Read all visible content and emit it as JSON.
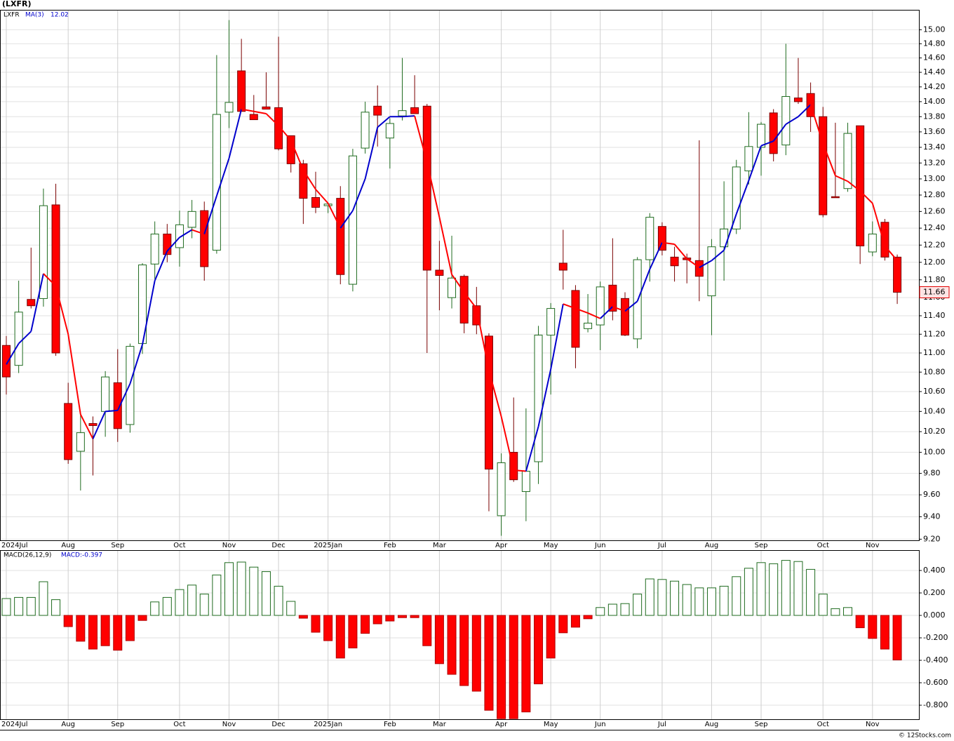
{
  "chart_data": [
    {
      "type": "candlestick",
      "title": "(LXFR)",
      "name": "LXFR",
      "log_scale": true,
      "grid": true,
      "up_color": "#1f6b1f",
      "down_color": "#ff0000",
      "down_edge": "#7a0000",
      "categories": [
        "2024Jul",
        null,
        null,
        null,
        null,
        "Aug",
        null,
        null,
        null,
        "Sep",
        null,
        null,
        null,
        null,
        "Oct",
        null,
        null,
        null,
        "Nov",
        null,
        null,
        null,
        "Dec",
        null,
        null,
        null,
        "2025Jan",
        null,
        null,
        null,
        null,
        "Feb",
        null,
        null,
        null,
        "Mar",
        null,
        null,
        null,
        null,
        "Apr",
        null,
        null,
        null,
        "May",
        null,
        null,
        null,
        "Jun",
        null,
        null,
        null,
        null,
        "Jul",
        null,
        null,
        null,
        "Aug",
        null,
        null,
        null,
        "Sep",
        null,
        null,
        null,
        null,
        "Oct",
        null,
        null,
        null,
        "Nov",
        null,
        null
      ],
      "open": [
        11.08,
        10.87,
        11.58,
        11.59,
        12.68,
        10.48,
        10.01,
        10.28,
        10.4,
        10.69,
        10.27,
        11.1,
        11.98,
        12.33,
        12.17,
        12.41,
        12.61,
        12.14,
        13.86,
        14.42,
        13.83,
        13.93,
        13.92,
        13.55,
        13.19,
        12.77,
        12.67,
        12.76,
        11.75,
        13.39,
        13.94,
        13.52,
        13.81,
        13.92,
        13.94,
        11.91,
        11.6,
        11.84,
        11.51,
        11.18,
        9.41,
        10.0,
        9.63,
        9.91,
        11.19,
        11.99,
        11.68,
        11.26,
        11.3,
        11.74,
        11.59,
        11.15,
        12.03,
        12.42,
        12.06,
        12.05,
        12.02,
        11.62,
        12.18,
        12.39,
        13.1,
        13.4,
        13.85,
        13.43,
        14.05,
        14.11,
        13.8,
        12.78,
        12.88,
        13.68,
        12.12,
        12.47,
        12.06
      ],
      "high": [
        11.18,
        11.79,
        12.17,
        12.88,
        12.94,
        10.69,
        10.39,
        10.35,
        10.81,
        11.04,
        11.1,
        11.99,
        12.48,
        12.45,
        12.61,
        12.74,
        12.72,
        14.64,
        15.14,
        14.87,
        14.09,
        14.4,
        14.9,
        13.55,
        13.24,
        13.09,
        12.69,
        12.91,
        13.38,
        14.0,
        14.22,
        13.78,
        14.6,
        14.36,
        13.97,
        12.25,
        12.31,
        11.86,
        11.72,
        11.21,
        9.99,
        10.54,
        10.43,
        11.29,
        11.54,
        12.38,
        11.74,
        11.64,
        11.78,
        12.28,
        11.66,
        12.06,
        12.58,
        12.47,
        12.18,
        12.1,
        13.49,
        12.27,
        12.97,
        13.24,
        13.86,
        13.73,
        13.9,
        14.8,
        14.6,
        14.26,
        13.93,
        13.72,
        13.72,
        13.68,
        12.48,
        12.51,
        12.09
      ],
      "low": [
        10.57,
        10.79,
        11.48,
        11.5,
        10.97,
        9.89,
        9.64,
        9.78,
        10.15,
        10.1,
        10.19,
        10.99,
        11.81,
        12.0,
        11.95,
        12.28,
        11.79,
        12.1,
        13.65,
        13.87,
        13.76,
        13.9,
        13.36,
        13.08,
        12.45,
        12.58,
        12.58,
        11.75,
        11.67,
        13.32,
        13.41,
        13.13,
        13.75,
        13.84,
        11.0,
        11.46,
        11.48,
        11.21,
        11.2,
        9.45,
        9.23,
        9.72,
        9.36,
        9.7,
        10.57,
        11.69,
        10.84,
        11.22,
        11.03,
        11.35,
        11.18,
        11.05,
        11.78,
        12.08,
        11.78,
        11.76,
        11.56,
        11.19,
        11.79,
        12.33,
        12.93,
        13.04,
        13.22,
        13.3,
        13.97,
        13.6,
        12.53,
        12.77,
        12.84,
        11.98,
        12.07,
        12.02,
        11.53
      ],
      "close": [
        10.75,
        11.44,
        11.51,
        12.67,
        11.0,
        9.93,
        10.19,
        10.26,
        10.75,
        10.23,
        11.07,
        11.97,
        12.33,
        12.09,
        12.44,
        12.6,
        11.95,
        13.83,
        13.99,
        13.87,
        13.76,
        13.9,
        13.38,
        13.19,
        12.76,
        12.65,
        12.69,
        11.86,
        13.29,
        13.86,
        13.82,
        13.71,
        13.88,
        13.84,
        11.91,
        11.85,
        11.82,
        11.32,
        11.3,
        9.84,
        9.9,
        9.74,
        9.82,
        11.19,
        11.48,
        11.91,
        11.06,
        11.32,
        11.72,
        11.45,
        11.19,
        12.03,
        12.53,
        12.14,
        11.96,
        12.03,
        11.84,
        12.18,
        12.39,
        13.15,
        13.41,
        13.7,
        13.32,
        14.07,
        14.0,
        13.8,
        12.56,
        12.77,
        13.58,
        12.19,
        12.33,
        12.06,
        11.66
      ],
      "ma": {
        "name": "MA(3)",
        "color_up": "#0000cc",
        "color_down": "#ff0000",
        "values": [
          10.88,
          11.1,
          11.23,
          11.87,
          11.73,
          11.2,
          10.37,
          10.13,
          10.4,
          10.41,
          10.68,
          11.09,
          11.79,
          12.13,
          12.29,
          12.38,
          12.33,
          12.79,
          13.26,
          13.9,
          13.87,
          13.84,
          13.68,
          13.49,
          13.11,
          12.87,
          12.7,
          12.4,
          12.61,
          13.0,
          13.66,
          13.8,
          13.8,
          13.81,
          13.21,
          12.53,
          11.86,
          11.66,
          11.48,
          10.82,
          10.35,
          9.83,
          9.82,
          10.25,
          10.83,
          11.53,
          11.48,
          11.43,
          11.37,
          11.5,
          11.45,
          11.56,
          11.92,
          12.23,
          12.21,
          12.04,
          11.94,
          12.02,
          12.14,
          12.57,
          12.98,
          13.42,
          13.48,
          13.7,
          13.8,
          13.96,
          13.45,
          13.04,
          12.97,
          12.85,
          12.7,
          12.19,
          12.02
        ]
      },
      "ylim": [
        9.19,
        15.29
      ],
      "yticks": [
        {
          "value": 15,
          "label": "15.00"
        },
        {
          "value": 14.8,
          "label": "14.80"
        },
        {
          "value": 14.6,
          "label": "14.60"
        },
        {
          "value": 14.4,
          "label": "14.40"
        },
        {
          "value": 14.2,
          "label": "14.20"
        },
        {
          "value": 14,
          "label": "14.00"
        },
        {
          "value": 13.8,
          "label": "13.80"
        },
        {
          "value": 13.6,
          "label": "13.60"
        },
        {
          "value": 13.4,
          "label": "13.40"
        },
        {
          "value": 13.2,
          "label": "13.20"
        },
        {
          "value": 13,
          "label": "13.00"
        },
        {
          "value": 12.8,
          "label": "12.80"
        },
        {
          "value": 12.6,
          "label": "12.60"
        },
        {
          "value": 12.4,
          "label": "12.40"
        },
        {
          "value": 12.2,
          "label": "12.20"
        },
        {
          "value": 12,
          "label": "12.00"
        },
        {
          "value": 11.8,
          "label": "11.80"
        },
        {
          "value": 11.6,
          "label": "11.60"
        },
        {
          "value": 11.4,
          "label": "11.40"
        },
        {
          "value": 11.2,
          "label": "11.20"
        },
        {
          "value": 11,
          "label": "11.00"
        },
        {
          "value": 10.8,
          "label": "10.80"
        },
        {
          "value": 10.6,
          "label": "10.60"
        },
        {
          "value": 10.4,
          "label": "10.40"
        },
        {
          "value": 10.2,
          "label": "10.20"
        },
        {
          "value": 10,
          "label": "10.00"
        },
        {
          "value": 9.8,
          "label": "9.80"
        },
        {
          "value": 9.6,
          "label": "9.60"
        },
        {
          "value": 9.4,
          "label": "9.40"
        },
        {
          "value": 9.2,
          "label": "9.20"
        }
      ]
    },
    {
      "type": "bar",
      "name": "MACD(26,12,9)",
      "last_label": "MACD:-0.397",
      "grid": true,
      "up_color": "#1f6b1f",
      "down_color": "#ff0000",
      "values": [
        0.15,
        0.16,
        0.16,
        0.3,
        0.14,
        -0.1,
        -0.23,
        -0.3,
        -0.27,
        -0.31,
        -0.225,
        -0.045,
        0.12,
        0.16,
        0.23,
        0.27,
        0.19,
        0.36,
        0.47,
        0.475,
        0.43,
        0.39,
        0.26,
        0.125,
        -0.025,
        -0.15,
        -0.225,
        -0.38,
        -0.29,
        -0.16,
        -0.075,
        -0.05,
        -0.02,
        -0.02,
        -0.27,
        -0.43,
        -0.525,
        -0.625,
        -0.675,
        -0.845,
        -0.92,
        -0.92,
        -0.86,
        -0.61,
        -0.38,
        -0.155,
        -0.105,
        -0.03,
        0.07,
        0.1,
        0.105,
        0.19,
        0.325,
        0.32,
        0.305,
        0.275,
        0.245,
        0.245,
        0.26,
        0.345,
        0.42,
        0.47,
        0.46,
        0.49,
        0.48,
        0.41,
        0.19,
        0.06,
        0.07,
        -0.11,
        -0.205,
        -0.3,
        -0.397
      ],
      "ylim": [
        -0.925,
        0.575
      ],
      "yticks": [
        {
          "value": 0.4,
          "label": "0.400"
        },
        {
          "value": 0.2,
          "label": "0.200"
        },
        {
          "value": 0,
          "label": "0.000"
        },
        {
          "value": -0.2,
          "label": "-0.200"
        },
        {
          "value": -0.4,
          "label": "-0.400"
        },
        {
          "value": -0.6,
          "label": "-0.600"
        },
        {
          "value": -0.8,
          "label": "-0.800"
        }
      ]
    }
  ],
  "source": "© 12Stocks.com"
}
